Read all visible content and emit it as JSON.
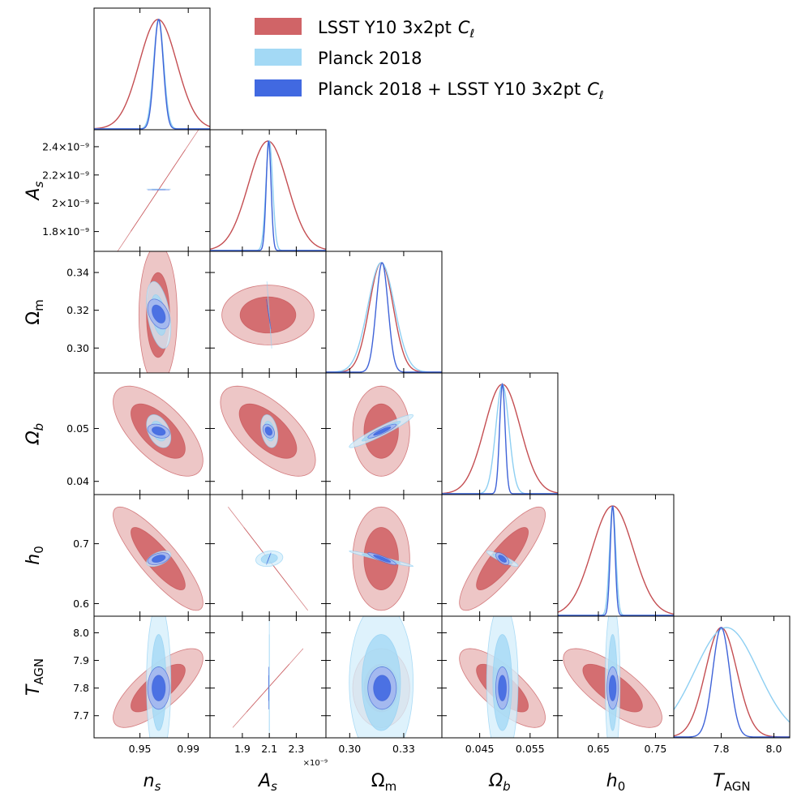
{
  "chart_data": {
    "type": "corner",
    "title": "",
    "parameters": [
      {
        "key": "n_s",
        "label": "n",
        "sub": "s",
        "italic": true,
        "range": [
          0.912,
          1.008
        ],
        "ticks": [
          0.95,
          0.99
        ],
        "tick_labels": [
          "0.95",
          "0.99"
        ]
      },
      {
        "key": "A_s",
        "label": "A",
        "sub": "s",
        "italic": true,
        "range": [
          1.66e-09,
          2.52e-09
        ],
        "ticks": [
          1.9e-09,
          2.1e-09,
          2.3e-09
        ],
        "tick_labels": [
          "1.9",
          "2.1",
          "2.3"
        ],
        "row_ticks": [
          1.8e-09,
          2e-09,
          2.2e-09,
          2.4e-09
        ],
        "row_tick_labels": [
          "1.8×10⁻⁹",
          "2×10⁻⁹",
          "2.2×10⁻⁹",
          "2.4×10⁻⁹"
        ],
        "offset_label": "×10⁻⁹"
      },
      {
        "key": "Omega_m",
        "label": "Ω",
        "sub": "m",
        "italic": false,
        "range": [
          0.2868,
          0.3512
        ],
        "ticks": [
          0.3,
          0.33
        ],
        "tick_labels": [
          "0.30",
          "0.33"
        ],
        "row_ticks": [
          0.3,
          0.32,
          0.34
        ],
        "row_tick_labels": [
          "0.30",
          "0.32",
          "0.34"
        ]
      },
      {
        "key": "Omega_b",
        "label": "Ω",
        "sub": "b",
        "italic": true,
        "range": [
          0.0375,
          0.0605
        ],
        "ticks": [
          0.045,
          0.055
        ],
        "tick_labels": [
          "0.045",
          "0.055"
        ],
        "row_ticks": [
          0.04,
          0.05
        ],
        "row_tick_labels": [
          "0.04",
          "0.05"
        ]
      },
      {
        "key": "h_0",
        "label": "h",
        "sub": "0",
        "italic": true,
        "range": [
          0.579,
          0.782
        ],
        "ticks": [
          0.65,
          0.75
        ],
        "tick_labels": [
          "0.65",
          "0.75"
        ],
        "row_ticks": [
          0.6,
          0.7
        ],
        "row_tick_labels": [
          "0.6",
          "0.7"
        ]
      },
      {
        "key": "T_AGN",
        "label": "T",
        "sub": "AGN",
        "italic": true,
        "range": [
          7.62,
          8.06
        ],
        "ticks": [
          7.8,
          8.0
        ],
        "tick_labels": [
          "7.8",
          "8.0"
        ],
        "row_ticks": [
          7.7,
          7.8,
          7.9,
          8.0
        ],
        "row_tick_labels": [
          "7.7",
          "7.8",
          "7.9",
          "8.0"
        ]
      }
    ],
    "series": [
      {
        "name": "LSST Y10 3x2pt C_ℓ",
        "label_text": "LSST Y10 3x2pt",
        "label_symbol": "C",
        "label_sub": "ℓ",
        "color_line": "#c44e52",
        "color_outer": "#ebc0c0",
        "color_inner": "#d06467",
        "mean": [
          0.965,
          2.09e-09,
          0.3175,
          0.0495,
          0.675,
          7.8
        ],
        "sigma": [
          0.0155,
          1.45e-10,
          0.0066,
          0.00355,
          0.036,
          0.0595
        ]
      },
      {
        "name": "Planck 2018",
        "label_text": "Planck 2018",
        "color_line": "#8ecff2",
        "color_outer": "#d5eefb",
        "color_inner": "#a3d9f5",
        "mean": [
          0.9655,
          2.1e-09,
          0.3175,
          0.0495,
          0.675,
          7.82
        ],
        "sigma": [
          0.0042,
          2.5e-11,
          0.0074,
          0.0013,
          0.0054,
          0.12
        ]
      },
      {
        "name": "Planck 2018 + LSST Y10 3x2pt C_ℓ",
        "label_text": "Planck 2018 + LSST Y10 3x2pt",
        "label_symbol": "C",
        "label_sub": "ℓ",
        "color_line": "#3f63d8",
        "color_outer": "#a3b6ee",
        "color_inner": "#4169e1",
        "mean": [
          0.9655,
          2.095e-09,
          0.318,
          0.0495,
          0.675,
          7.8
        ],
        "sigma": [
          0.0038,
          1.8e-11,
          0.0033,
          0.00055,
          0.0042,
          0.032
        ]
      }
    ],
    "correlations": {
      "LSST Y10 3x2pt C_ℓ": {
        "1,0": 0.94,
        "2,0": 0.0,
        "2,1": 0.0,
        "3,0": -0.65,
        "3,1": -0.65,
        "3,2": 0.0,
        "4,0": -0.85,
        "4,1": -0.85,
        "4,2": 0.0,
        "4,3": 0.85,
        "5,0": 0.75,
        "5,1": 0.75,
        "5,2": 0.0,
        "5,3": -0.75,
        "5,4": -0.75
      },
      "Planck 2018": {
        "1,0": 0.4,
        "2,0": -0.4,
        "2,1": -0.3,
        "3,0": -0.4,
        "3,1": -0.3,
        "3,2": 0.95,
        "4,0": 0.5,
        "4,1": 0.3,
        "4,2": -0.97,
        "4,3": -0.9,
        "5,0": 0.0,
        "5,1": 0.0,
        "5,2": 0.0,
        "5,3": 0.0,
        "5,4": 0.0
      },
      "Planck 2018 + LSST Y10 3x2pt C_ℓ": {
        "1,0": 0.6,
        "2,0": -0.4,
        "2,1": -0.4,
        "3,0": -0.3,
        "3,1": -0.3,
        "3,2": 0.9,
        "4,0": 0.4,
        "4,1": 0.4,
        "4,2": -0.9,
        "4,3": -0.6,
        "5,0": 0.0,
        "5,1": 0.0,
        "5,2": 0.0,
        "5,3": 0.0,
        "5,4": 0.0
      }
    },
    "legend": {
      "placement": "top-right"
    }
  }
}
